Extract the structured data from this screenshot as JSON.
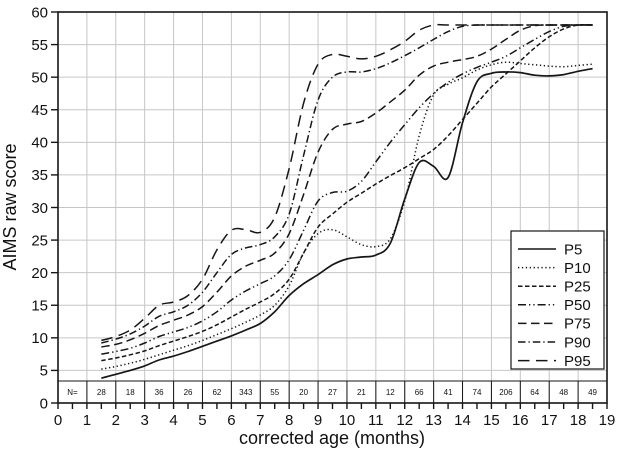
{
  "colors": {
    "line": "#161616",
    "grid": "#c6c6c6",
    "axis": "#161616",
    "background": "#ffffff"
  },
  "chart_data": {
    "type": "line",
    "title": "",
    "xlabel": "corrected age (months)",
    "ylabel": "AIMS raw score",
    "xlim": [
      0,
      19
    ],
    "ylim": [
      0,
      60
    ],
    "x_tick_step": 1,
    "x_minor_tick_step": 0.5,
    "y_tick_step": 5,
    "grid": true,
    "legend_position": "right-middle",
    "x_tick_labels": [
      "0",
      "1",
      "2",
      "3",
      "4",
      "5",
      "6",
      "7",
      "8",
      "9",
      "10",
      "11",
      "12",
      "13",
      "14",
      "15",
      "16",
      "17",
      "18",
      "19"
    ],
    "y_tick_labels": [
      "0",
      "5",
      "10",
      "15",
      "20",
      "25",
      "30",
      "35",
      "40",
      "45",
      "50",
      "55",
      "60"
    ],
    "n_row": {
      "label": "N=",
      "values": [
        "28",
        "18",
        "36",
        "26",
        "62",
        "343",
        "55",
        "20",
        "27",
        "21",
        "12",
        "66",
        "41",
        "74",
        "206",
        "64",
        "48",
        "49"
      ]
    },
    "series": [
      {
        "name": "P95",
        "style": "widedash",
        "points": [
          [
            1.5,
            9.6
          ],
          [
            2,
            10.2
          ],
          [
            2.5,
            11.2
          ],
          [
            3,
            13
          ],
          [
            3.5,
            15
          ],
          [
            4,
            15.5
          ],
          [
            4.5,
            16.5
          ],
          [
            5,
            19
          ],
          [
            5.5,
            23.5
          ],
          [
            6,
            26.5
          ],
          [
            6.5,
            26.6
          ],
          [
            7,
            26.2
          ],
          [
            7.5,
            28.5
          ],
          [
            8,
            36
          ],
          [
            8.5,
            46
          ],
          [
            9,
            52
          ],
          [
            9.5,
            53.5
          ],
          [
            10,
            53.2
          ],
          [
            10.5,
            52.8
          ],
          [
            11,
            53.2
          ],
          [
            11.5,
            54.2
          ],
          [
            12,
            55.5
          ],
          [
            12.5,
            57.2
          ],
          [
            13,
            58
          ],
          [
            13.5,
            58
          ],
          [
            14,
            58
          ],
          [
            14.5,
            58
          ],
          [
            15,
            58
          ],
          [
            15.5,
            58
          ],
          [
            16,
            58
          ],
          [
            16.5,
            58
          ],
          [
            17,
            58
          ],
          [
            17.5,
            58
          ],
          [
            18,
            58
          ],
          [
            18.5,
            58
          ]
        ]
      },
      {
        "name": "P90",
        "style": "dashdot",
        "points": [
          [
            1.5,
            9.2
          ],
          [
            2,
            9.8
          ],
          [
            2.5,
            10.6
          ],
          [
            3,
            11.8
          ],
          [
            3.5,
            13.3
          ],
          [
            4,
            14
          ],
          [
            4.5,
            15
          ],
          [
            5,
            17
          ],
          [
            5.5,
            20
          ],
          [
            6,
            22.8
          ],
          [
            6.5,
            23.8
          ],
          [
            7,
            24.3
          ],
          [
            7.5,
            25.5
          ],
          [
            8,
            29
          ],
          [
            8.5,
            38
          ],
          [
            9,
            46.5
          ],
          [
            9.5,
            50
          ],
          [
            10,
            50.8
          ],
          [
            10.5,
            50.8
          ],
          [
            11,
            51.3
          ],
          [
            11.5,
            52.2
          ],
          [
            12,
            53.3
          ],
          [
            12.5,
            54.5
          ],
          [
            13,
            55.8
          ],
          [
            13.5,
            57
          ],
          [
            14,
            57.8
          ],
          [
            14.5,
            58
          ],
          [
            15,
            58
          ],
          [
            15.5,
            58
          ],
          [
            16,
            58
          ],
          [
            16.5,
            58
          ],
          [
            17,
            58
          ],
          [
            17.5,
            58
          ],
          [
            18,
            58
          ],
          [
            18.5,
            58
          ]
        ]
      },
      {
        "name": "P75",
        "style": "longdash",
        "points": [
          [
            1.5,
            8.6
          ],
          [
            2,
            9
          ],
          [
            2.5,
            9.7
          ],
          [
            3,
            10.7
          ],
          [
            3.5,
            11.9
          ],
          [
            4,
            12.7
          ],
          [
            4.5,
            13.5
          ],
          [
            5,
            14.8
          ],
          [
            5.5,
            17
          ],
          [
            6,
            19.5
          ],
          [
            6.5,
            21
          ],
          [
            7,
            21.9
          ],
          [
            7.5,
            23
          ],
          [
            8,
            26
          ],
          [
            8.5,
            32
          ],
          [
            9,
            38.5
          ],
          [
            9.5,
            42
          ],
          [
            10,
            42.8
          ],
          [
            10.5,
            43.2
          ],
          [
            11,
            44.5
          ],
          [
            11.5,
            46.2
          ],
          [
            12,
            48
          ],
          [
            12.5,
            50.3
          ],
          [
            13,
            51.7
          ],
          [
            13.5,
            52.3
          ],
          [
            14,
            52.7
          ],
          [
            14.5,
            53.2
          ],
          [
            15,
            54.3
          ],
          [
            15.5,
            55.8
          ],
          [
            16,
            57.2
          ],
          [
            16.5,
            57.9
          ],
          [
            17,
            58
          ],
          [
            17.5,
            58
          ],
          [
            18,
            58
          ],
          [
            18.5,
            58
          ]
        ]
      },
      {
        "name": "P50",
        "style": "dashdotdot",
        "points": [
          [
            1.5,
            7.5
          ],
          [
            2,
            7.9
          ],
          [
            2.5,
            8.4
          ],
          [
            3,
            9.2
          ],
          [
            3.5,
            10.2
          ],
          [
            4,
            10.9
          ],
          [
            4.5,
            11.6
          ],
          [
            5,
            12.6
          ],
          [
            5.5,
            14
          ],
          [
            6,
            15.8
          ],
          [
            6.5,
            17.2
          ],
          [
            7,
            18.3
          ],
          [
            7.5,
            19.5
          ],
          [
            8,
            22
          ],
          [
            8.5,
            26.5
          ],
          [
            9,
            31
          ],
          [
            9.5,
            32.3
          ],
          [
            10,
            32.5
          ],
          [
            10.5,
            34
          ],
          [
            11,
            37
          ],
          [
            11.5,
            40
          ],
          [
            12,
            42.7
          ],
          [
            12.5,
            45.3
          ],
          [
            13,
            47.5
          ],
          [
            13.5,
            49.2
          ],
          [
            14,
            50.5
          ],
          [
            14.5,
            51.5
          ],
          [
            15,
            52.3
          ],
          [
            15.5,
            53.2
          ],
          [
            16,
            54.5
          ],
          [
            16.5,
            55.8
          ],
          [
            17,
            57
          ],
          [
            17.5,
            57.8
          ],
          [
            18,
            58
          ],
          [
            18.5,
            58
          ]
        ]
      },
      {
        "name": "P25",
        "style": "dash",
        "points": [
          [
            1.5,
            6.5
          ],
          [
            2,
            6.9
          ],
          [
            2.5,
            7.4
          ],
          [
            3,
            8
          ],
          [
            3.5,
            8.8
          ],
          [
            4,
            9.5
          ],
          [
            4.5,
            10.2
          ],
          [
            5,
            11
          ],
          [
            5.5,
            12
          ],
          [
            6,
            13.2
          ],
          [
            6.5,
            14.4
          ],
          [
            7,
            15.5
          ],
          [
            7.5,
            16.8
          ],
          [
            8,
            19
          ],
          [
            8.5,
            23
          ],
          [
            9,
            27
          ],
          [
            9.5,
            29
          ],
          [
            10,
            30.8
          ],
          [
            10.5,
            32.2
          ],
          [
            11,
            33.6
          ],
          [
            11.5,
            34.9
          ],
          [
            12,
            36.1
          ],
          [
            12.5,
            37.5
          ],
          [
            13,
            38.9
          ],
          [
            13.5,
            41
          ],
          [
            14,
            43.5
          ],
          [
            14.5,
            46
          ],
          [
            15,
            48.5
          ],
          [
            15.5,
            50.5
          ],
          [
            16,
            52.5
          ],
          [
            16.5,
            54.5
          ],
          [
            17,
            56.2
          ],
          [
            17.5,
            57.4
          ],
          [
            18,
            58
          ],
          [
            18.5,
            58
          ]
        ]
      },
      {
        "name": "P10",
        "style": "dotted",
        "points": [
          [
            1.5,
            5.2
          ],
          [
            2,
            5.6
          ],
          [
            2.5,
            6.1
          ],
          [
            3,
            6.7
          ],
          [
            3.5,
            7.4
          ],
          [
            4,
            8.1
          ],
          [
            4.5,
            8.8
          ],
          [
            5,
            9.6
          ],
          [
            5.5,
            10.5
          ],
          [
            6,
            11.4
          ],
          [
            6.5,
            12.4
          ],
          [
            7,
            13.5
          ],
          [
            7.5,
            15
          ],
          [
            8,
            18
          ],
          [
            8.5,
            23
          ],
          [
            9,
            26
          ],
          [
            9.5,
            26.6
          ],
          [
            10,
            25.5
          ],
          [
            10.5,
            24.3
          ],
          [
            11,
            24
          ],
          [
            11.5,
            25.2
          ],
          [
            12,
            31
          ],
          [
            12.5,
            41
          ],
          [
            13,
            47.3
          ],
          [
            13.5,
            48.9
          ],
          [
            14,
            49.9
          ],
          [
            14.5,
            51.1
          ],
          [
            15,
            51.9
          ],
          [
            15.5,
            52.3
          ],
          [
            16,
            52.1
          ],
          [
            16.5,
            51.9
          ],
          [
            17,
            51.7
          ],
          [
            17.5,
            51.6
          ],
          [
            18,
            51.8
          ],
          [
            18.5,
            52
          ]
        ]
      },
      {
        "name": "P5",
        "style": "solid",
        "points": [
          [
            1.5,
            3.8
          ],
          [
            2,
            4.4
          ],
          [
            2.5,
            5
          ],
          [
            3,
            5.7
          ],
          [
            3.5,
            6.6
          ],
          [
            4,
            7.2
          ],
          [
            4.5,
            7.9
          ],
          [
            5,
            8.7
          ],
          [
            5.5,
            9.5
          ],
          [
            6,
            10.3
          ],
          [
            6.5,
            11.2
          ],
          [
            7,
            12.2
          ],
          [
            7.5,
            14
          ],
          [
            8,
            16.5
          ],
          [
            8.5,
            18.3
          ],
          [
            9,
            19.7
          ],
          [
            9.5,
            21.2
          ],
          [
            10,
            22.1
          ],
          [
            10.5,
            22.4
          ],
          [
            11,
            22.7
          ],
          [
            11.5,
            24.5
          ],
          [
            12,
            31.3
          ],
          [
            12.5,
            36.9
          ],
          [
            13,
            36.3
          ],
          [
            13.5,
            34.6
          ],
          [
            14,
            43
          ],
          [
            14.5,
            49.3
          ],
          [
            15,
            50.6
          ],
          [
            15.5,
            50.8
          ],
          [
            16,
            50.7
          ],
          [
            16.5,
            50.3
          ],
          [
            17,
            50.2
          ],
          [
            17.5,
            50.4
          ],
          [
            18,
            50.9
          ],
          [
            18.5,
            51.3
          ]
        ]
      }
    ],
    "legend": [
      {
        "label": "P5",
        "style": "solid"
      },
      {
        "label": "P10",
        "style": "dotted"
      },
      {
        "label": "P25",
        "style": "dash"
      },
      {
        "label": "P50",
        "style": "dashdotdot"
      },
      {
        "label": "P75",
        "style": "longdash"
      },
      {
        "label": "P90",
        "style": "dashdot"
      },
      {
        "label": "P95",
        "style": "widedash"
      }
    ]
  }
}
